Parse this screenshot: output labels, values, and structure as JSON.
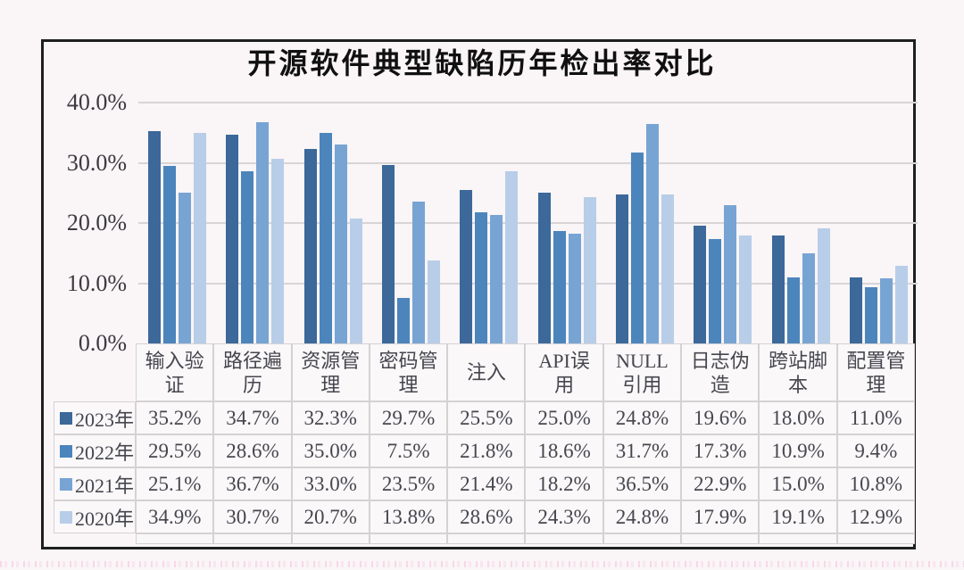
{
  "chart_data": {
    "type": "bar",
    "title": "开源软件典型缺陷历年检出率对比",
    "categories": [
      "输入验证",
      "路径遍历",
      "资源管理",
      "密码管理",
      "注入",
      "API误用",
      "NULL引用",
      "日志伪造",
      "跨站脚本",
      "配置管理"
    ],
    "category_display": [
      "输入验\n证",
      "路径遍\n历",
      "资源管\n理",
      "密码管\n理",
      "注入",
      "API误\n用",
      "NULL\n引用",
      "日志伪\n造",
      "跨站脚\n本",
      "配置管\n理"
    ],
    "series": [
      {
        "name": "2023年",
        "color": "#3c689a",
        "values": [
          35.2,
          34.7,
          32.3,
          29.7,
          25.5,
          25.0,
          24.8,
          19.6,
          18.0,
          11.0
        ]
      },
      {
        "name": "2022年",
        "color": "#4c85bc",
        "values": [
          29.5,
          28.6,
          35.0,
          7.5,
          21.8,
          18.6,
          31.7,
          17.3,
          10.9,
          9.4
        ]
      },
      {
        "name": "2021年",
        "color": "#78a4d4",
        "values": [
          25.1,
          36.7,
          33.0,
          23.5,
          21.4,
          18.2,
          36.5,
          22.9,
          15.0,
          10.8
        ]
      },
      {
        "name": "2020年",
        "color": "#b8cde8",
        "values": [
          34.9,
          30.7,
          20.7,
          13.8,
          28.6,
          24.3,
          24.8,
          17.9,
          19.1,
          12.9
        ]
      }
    ],
    "y_ticks": [
      "40.0%",
      "30.0%",
      "20.0%",
      "10.0%",
      "0.0%"
    ],
    "ylim": [
      0,
      40
    ],
    "xlabel": "",
    "ylabel": "",
    "grid": true,
    "legend_position": "table-left-column",
    "value_suffix": "%"
  },
  "colors": {
    "background": "#faf5f6",
    "frame": "#1f1f1f",
    "gridline": "#d8d5d7",
    "table_border": "#d5d2d4",
    "table_text": "#46464e",
    "axis_text": "#3a3a41",
    "title_text": "#101010"
  }
}
